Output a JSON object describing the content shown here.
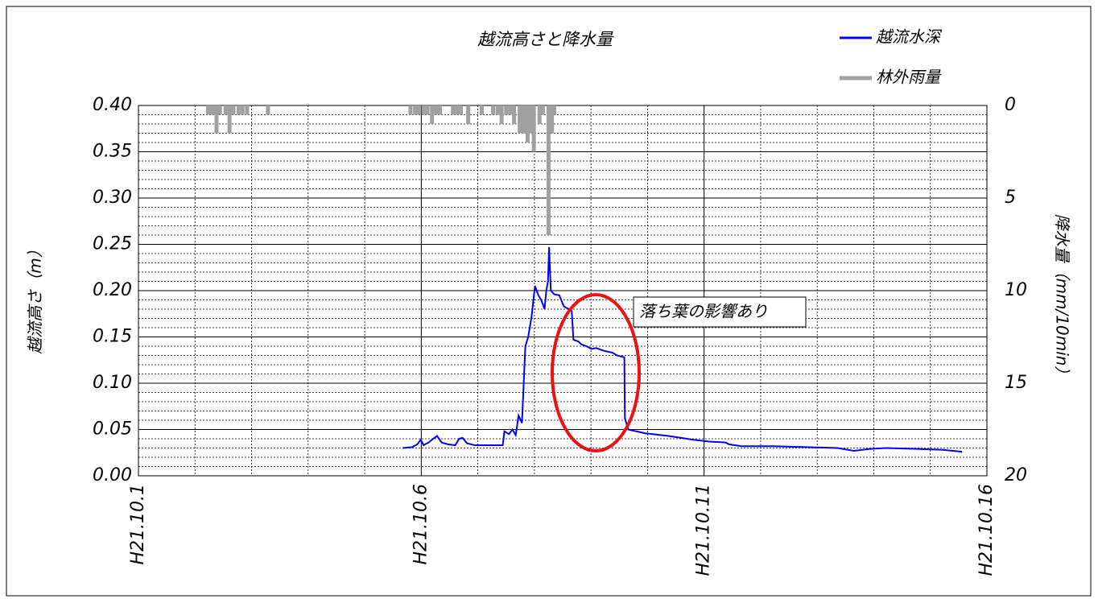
{
  "chart_data": {
    "type": "line",
    "title": "越流高さと降水量",
    "y_label": "越流高さ（m）",
    "y2_label": "降水量（mm/10min）",
    "xlim": [
      1,
      16
    ],
    "xticks": [
      {
        "value": 1,
        "label": "H21.10.1"
      },
      {
        "value": 6,
        "label": "H21.10.6"
      },
      {
        "value": 11,
        "label": "H21.10.11"
      },
      {
        "value": 16,
        "label": "H21.10.16"
      }
    ],
    "xminorticks": [
      2,
      3,
      4,
      5,
      7,
      8,
      9,
      10,
      12,
      13,
      14,
      15
    ],
    "ylim": [
      0,
      0.4
    ],
    "yticks": [
      {
        "value": 0,
        "label": "0.00"
      },
      0.05,
      {
        "value": 0.1,
        "label": "0.10"
      },
      0.15,
      {
        "value": 0.2,
        "label": "0.20"
      },
      0.25,
      {
        "value": 0.3,
        "label": "0.30"
      },
      0.35,
      {
        "value": 0.4,
        "label": "0.40"
      }
    ],
    "yminorticks": [
      0.01,
      0.02,
      0.03,
      0.04,
      0.06,
      0.07,
      0.08,
      0.09,
      0.11,
      0.12,
      0.13,
      0.14,
      0.16,
      0.17,
      0.18,
      0.19,
      0.21,
      0.22,
      0.23,
      0.24,
      0.26,
      0.27,
      0.28,
      0.29,
      0.31,
      0.32,
      0.33,
      0.34,
      0.36,
      0.37,
      0.38,
      0.39
    ],
    "y2lim": [
      20,
      0
    ],
    "y2ticks": [
      0,
      5,
      10,
      15,
      20
    ],
    "grid": true,
    "legend": "top-right",
    "annotations": [
      {
        "text": "落ち葉の影響あり"
      }
    ],
    "series": [
      {
        "name": "越流水深",
        "type": "line",
        "color": "#0000ff",
        "x": [
          5.67,
          5.84,
          5.93,
          5.99,
          6.04,
          6.13,
          6.21,
          6.28,
          6.36,
          6.47,
          6.6,
          6.67,
          6.73,
          6.81,
          6.95,
          7.17,
          7.44,
          7.47,
          7.55,
          7.61,
          7.67,
          7.72,
          7.78,
          7.84,
          7.89,
          7.95,
          8.01,
          8.07,
          8.12,
          8.18,
          8.21,
          8.24,
          8.26,
          8.29,
          8.35,
          8.44,
          8.52,
          8.61,
          8.66,
          8.69,
          8.78,
          8.83,
          8.92,
          9.01,
          9.09,
          9.23,
          9.38,
          9.46,
          9.59,
          9.6,
          9.66,
          9.95,
          10.37,
          10.8,
          11.09,
          11.38,
          11.44,
          11.66,
          12.23,
          12.79,
          13.36,
          13.65,
          13.93,
          14.22,
          14.79,
          15.22,
          15.56
        ],
        "values": [
          0.03,
          0.031,
          0.034,
          0.039,
          0.033,
          0.036,
          0.04,
          0.043,
          0.036,
          0.034,
          0.033,
          0.04,
          0.041,
          0.035,
          0.033,
          0.033,
          0.033,
          0.048,
          0.045,
          0.05,
          0.044,
          0.065,
          0.057,
          0.14,
          0.15,
          0.172,
          0.205,
          0.195,
          0.19,
          0.18,
          0.2,
          0.21,
          0.247,
          0.2,
          0.196,
          0.195,
          0.183,
          0.18,
          0.178,
          0.147,
          0.145,
          0.142,
          0.14,
          0.137,
          0.138,
          0.135,
          0.133,
          0.13,
          0.128,
          0.062,
          0.05,
          0.046,
          0.043,
          0.039,
          0.037,
          0.036,
          0.034,
          0.032,
          0.032,
          0.031,
          0.03,
          0.027,
          0.029,
          0.03,
          0.029,
          0.028,
          0.026
        ]
      },
      {
        "name": "林外雨量",
        "type": "bar",
        "axis": "y2",
        "color": "#a0a0a0",
        "x": [
          2.23,
          2.28,
          2.34,
          2.38,
          2.44,
          2.54,
          2.61,
          2.68,
          2.77,
          2.84,
          2.92,
          3.29,
          5.81,
          5.89,
          5.96,
          6.04,
          6.11,
          6.19,
          6.26,
          6.33,
          6.56,
          6.63,
          6.7,
          6.83,
          7.07,
          7.27,
          7.35,
          7.42,
          7.5,
          7.57,
          7.64,
          7.74,
          7.81,
          7.88,
          7.94,
          7.99,
          8.09,
          8.15,
          8.25,
          8.31,
          8.35
        ],
        "values": [
          0.5,
          0.5,
          0.5,
          1.5,
          0.5,
          0.5,
          1.5,
          0.5,
          0.5,
          0.5,
          0.5,
          0.5,
          0.5,
          0.5,
          0.5,
          0.5,
          0.5,
          1,
          0.5,
          0.5,
          0.5,
          0.5,
          0.5,
          1,
          0.5,
          0.5,
          0.5,
          1,
          0.5,
          0.5,
          1,
          1.5,
          1.5,
          2,
          1.5,
          2.5,
          1,
          0.5,
          7,
          1.5,
          0.5
        ]
      }
    ]
  }
}
